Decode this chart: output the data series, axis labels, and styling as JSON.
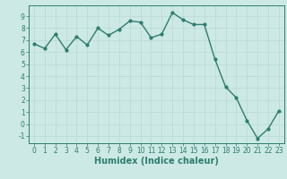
{
  "x": [
    0,
    1,
    2,
    3,
    4,
    5,
    6,
    7,
    8,
    9,
    10,
    11,
    12,
    13,
    14,
    15,
    16,
    17,
    18,
    19,
    20,
    21,
    22,
    23
  ],
  "y": [
    6.7,
    6.3,
    7.5,
    6.2,
    7.3,
    6.6,
    8.0,
    7.4,
    7.9,
    8.6,
    8.5,
    7.2,
    7.5,
    9.3,
    8.7,
    8.3,
    8.3,
    5.4,
    3.1,
    2.2,
    0.3,
    -1.2,
    -0.4,
    1.1
  ],
  "line_color": "#2e7d6e",
  "marker": "o",
  "marker_size": 2.0,
  "linewidth": 1.0,
  "xlabel": "Humidex (Indice chaleur)",
  "xlim": [
    -0.5,
    23.5
  ],
  "ylim": [
    -1.6,
    9.9
  ],
  "yticks": [
    -1,
    0,
    1,
    2,
    3,
    4,
    5,
    6,
    7,
    8,
    9
  ],
  "xticks": [
    0,
    1,
    2,
    3,
    4,
    5,
    6,
    7,
    8,
    9,
    10,
    11,
    12,
    13,
    14,
    15,
    16,
    17,
    18,
    19,
    20,
    21,
    22,
    23
  ],
  "bg_color": "#cce9e5",
  "grid_color": "#b8d8d4",
  "axis_color": "#2e7d6e",
  "tick_color": "#2e7d6e",
  "label_color": "#2e7d6e",
  "xlabel_fontsize": 7,
  "tick_fontsize": 5.5
}
